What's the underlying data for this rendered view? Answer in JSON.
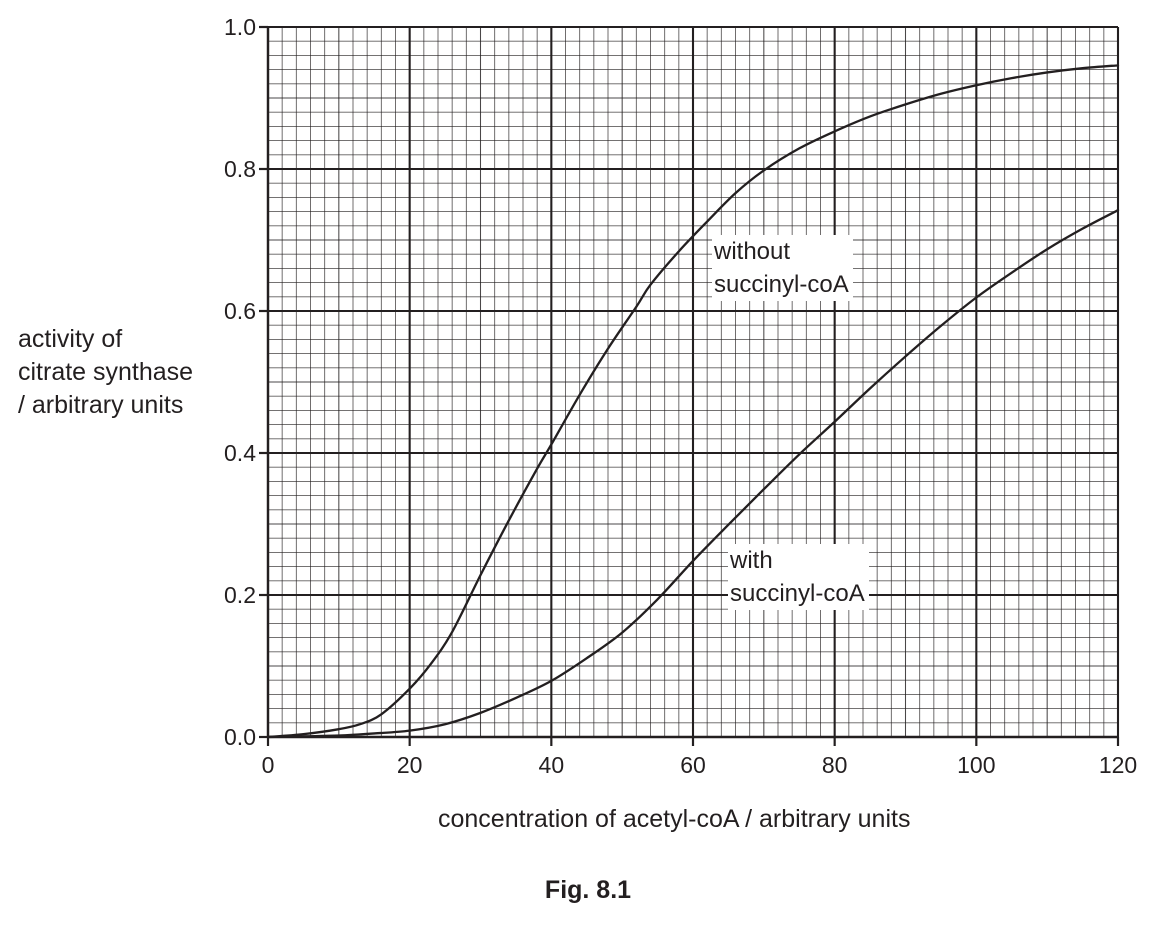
{
  "chart_data": {
    "type": "line",
    "xlabel": "concentration of acetyl-coA / arbitrary units",
    "ylabel_lines": [
      "activity of",
      "citrate synthase",
      "/ arbitrary units"
    ],
    "caption": "Fig. 8.1",
    "xlim": [
      0,
      120
    ],
    "ylim": [
      0,
      1.0
    ],
    "x_ticks": [
      0,
      20,
      40,
      60,
      80,
      100,
      120
    ],
    "x_tick_labels": [
      "0",
      "20",
      "40",
      "60",
      "80",
      "100",
      "120"
    ],
    "y_ticks": [
      0.0,
      0.2,
      0.4,
      0.6,
      0.8,
      1.0
    ],
    "y_tick_labels": [
      "0.0",
      "0.2",
      "0.4",
      "0.6",
      "0.8",
      "1.0"
    ],
    "grid": true,
    "grid_minor_step_x": 2,
    "grid_minor_step_y": 0.02,
    "grid_major_step_x": 20,
    "grid_major_step_y": 0.2,
    "series": [
      {
        "annotation_lines": [
          "without",
          "succinyl-coA"
        ],
        "x": [
          0,
          5,
          10,
          13,
          16,
          20,
          23,
          26,
          30,
          34,
          38,
          40,
          44,
          48,
          52,
          54,
          58,
          62,
          66,
          70,
          75,
          80,
          85,
          90,
          95,
          100,
          105,
          110,
          115,
          120
        ],
        "y": [
          0.0,
          0.004,
          0.011,
          0.018,
          0.032,
          0.068,
          0.103,
          0.148,
          0.228,
          0.305,
          0.378,
          0.412,
          0.482,
          0.547,
          0.606,
          0.637,
          0.684,
          0.726,
          0.766,
          0.798,
          0.829,
          0.853,
          0.874,
          0.891,
          0.906,
          0.918,
          0.928,
          0.936,
          0.942,
          0.946
        ]
      },
      {
        "annotation_lines": [
          "with",
          "succinyl-coA"
        ],
        "x": [
          0,
          5,
          10,
          15,
          20,
          25,
          30,
          35,
          40,
          45,
          50,
          55,
          60,
          65,
          70,
          75,
          80,
          85,
          90,
          95,
          100,
          105,
          110,
          115,
          120
        ],
        "y": [
          0.0,
          0.001,
          0.002,
          0.005,
          0.009,
          0.018,
          0.034,
          0.055,
          0.079,
          0.111,
          0.147,
          0.194,
          0.248,
          0.299,
          0.349,
          0.398,
          0.444,
          0.491,
          0.536,
          0.579,
          0.619,
          0.654,
          0.687,
          0.716,
          0.742
        ]
      }
    ]
  }
}
